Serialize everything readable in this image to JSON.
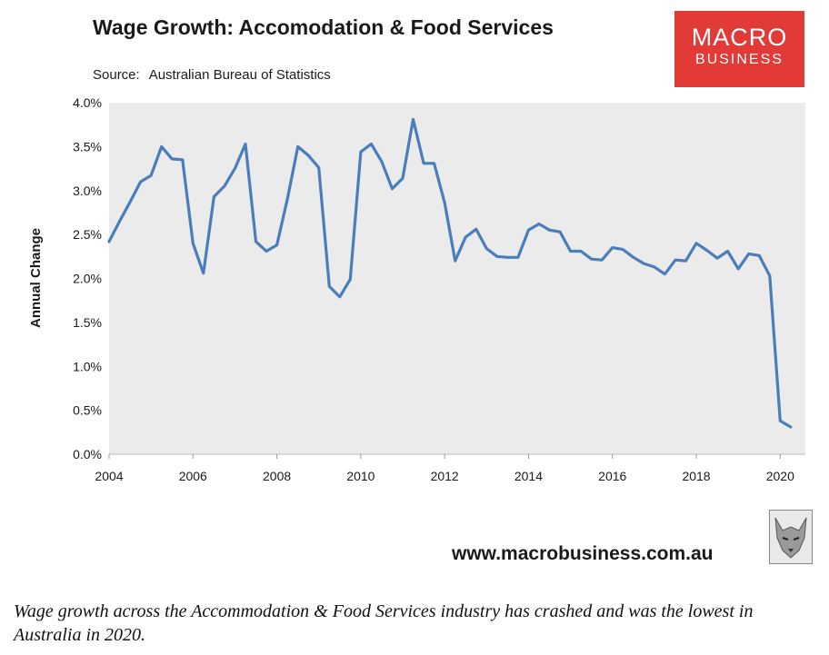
{
  "header": {
    "title": "Wage Growth: Accomodation & Food Services",
    "source_label": "Source:",
    "source_value": "Australian Bureau of Statistics"
  },
  "logo": {
    "line1": "MACRO",
    "line2": "BUSINESS",
    "color": "#e23a36"
  },
  "footer": {
    "website": "www.macrobusiness.com.au"
  },
  "caption": "Wage growth across the Accommodation & Food Services industry has crashed and was the lowest in Australia in 2020.",
  "chart_data": {
    "type": "line",
    "title": "Wage Growth: Accomodation & Food Services",
    "xlabel": "",
    "ylabel": "Annual Change",
    "xlim": [
      2004,
      2020.6
    ],
    "ylim": [
      0,
      4
    ],
    "grid": false,
    "line_color": "#4a7ebb",
    "x_ticks": [
      2004,
      2006,
      2008,
      2010,
      2012,
      2014,
      2016,
      2018,
      2020
    ],
    "x_tick_labels": [
      "2004",
      "2006",
      "2008",
      "2010",
      "2012",
      "2014",
      "2016",
      "2018",
      "2020"
    ],
    "y_ticks": [
      0,
      0.5,
      1,
      1.5,
      2,
      2.5,
      3,
      3.5,
      4
    ],
    "y_tick_labels": [
      "0.0%",
      "0.5%",
      "1.0%",
      "1.5%",
      "2.0%",
      "2.5%",
      "3.0%",
      "3.5%",
      "4.0%"
    ],
    "series": [
      {
        "name": "Annual Change",
        "x": [
          2004.0,
          2004.25,
          2004.5,
          2004.75,
          2005.0,
          2005.25,
          2005.5,
          2005.75,
          2006.0,
          2006.25,
          2006.5,
          2006.75,
          2007.0,
          2007.25,
          2007.5,
          2007.75,
          2008.0,
          2008.25,
          2008.5,
          2008.75,
          2009.0,
          2009.25,
          2009.5,
          2009.75,
          2010.0,
          2010.25,
          2010.5,
          2010.75,
          2011.0,
          2011.25,
          2011.5,
          2011.75,
          2012.0,
          2012.25,
          2012.5,
          2012.75,
          2013.0,
          2013.25,
          2013.5,
          2013.75,
          2014.0,
          2014.25,
          2014.5,
          2014.75,
          2015.0,
          2015.25,
          2015.5,
          2015.75,
          2016.0,
          2016.25,
          2016.5,
          2016.75,
          2017.0,
          2017.25,
          2017.5,
          2017.75,
          2018.0,
          2018.25,
          2018.5,
          2018.75,
          2019.0,
          2019.25,
          2019.5,
          2019.75,
          2020.0,
          2020.25
        ],
        "values": [
          2.42,
          2.65,
          2.87,
          3.1,
          3.17,
          3.5,
          3.36,
          3.35,
          2.4,
          2.06,
          2.93,
          3.05,
          3.25,
          3.53,
          2.42,
          2.31,
          2.38,
          2.9,
          3.5,
          3.4,
          3.26,
          1.91,
          1.79,
          1.99,
          3.44,
          3.53,
          3.33,
          3.02,
          3.14,
          3.81,
          3.31,
          3.31,
          2.86,
          2.2,
          2.47,
          2.56,
          2.34,
          2.25,
          2.24,
          2.24,
          2.55,
          2.62,
          2.55,
          2.53,
          2.31,
          2.31,
          2.22,
          2.21,
          2.35,
          2.33,
          2.24,
          2.17,
          2.13,
          2.05,
          2.21,
          2.2,
          2.4,
          2.32,
          2.23,
          2.31,
          2.11,
          2.28,
          2.26,
          2.03,
          0.38,
          0.31
        ]
      }
    ]
  }
}
